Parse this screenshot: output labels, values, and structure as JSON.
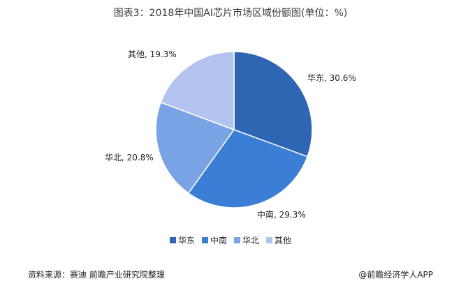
{
  "chart_data": {
    "type": "pie",
    "title": "图表3：2018年中国AI芯片市场区域份额图(单位：%)",
    "slices": [
      {
        "name": "华东",
        "value": 30.6,
        "color": "#2f66b3",
        "label": "华东, 30.6%"
      },
      {
        "name": "中南",
        "value": 29.3,
        "color": "#3a7fd5",
        "label": "中南, 29.3%"
      },
      {
        "name": "华北",
        "value": 20.8,
        "color": "#7aa3e6",
        "label": "华北, 20.8%"
      },
      {
        "name": "其他",
        "value": 19.3,
        "color": "#b3c3ef",
        "label": "其他, 19.3%"
      }
    ],
    "legend_position": "bottom"
  },
  "footer": {
    "source": "资料来源：赛迪 前瞻产业研究院整理",
    "brand": "@前瞻经济学人APP"
  }
}
